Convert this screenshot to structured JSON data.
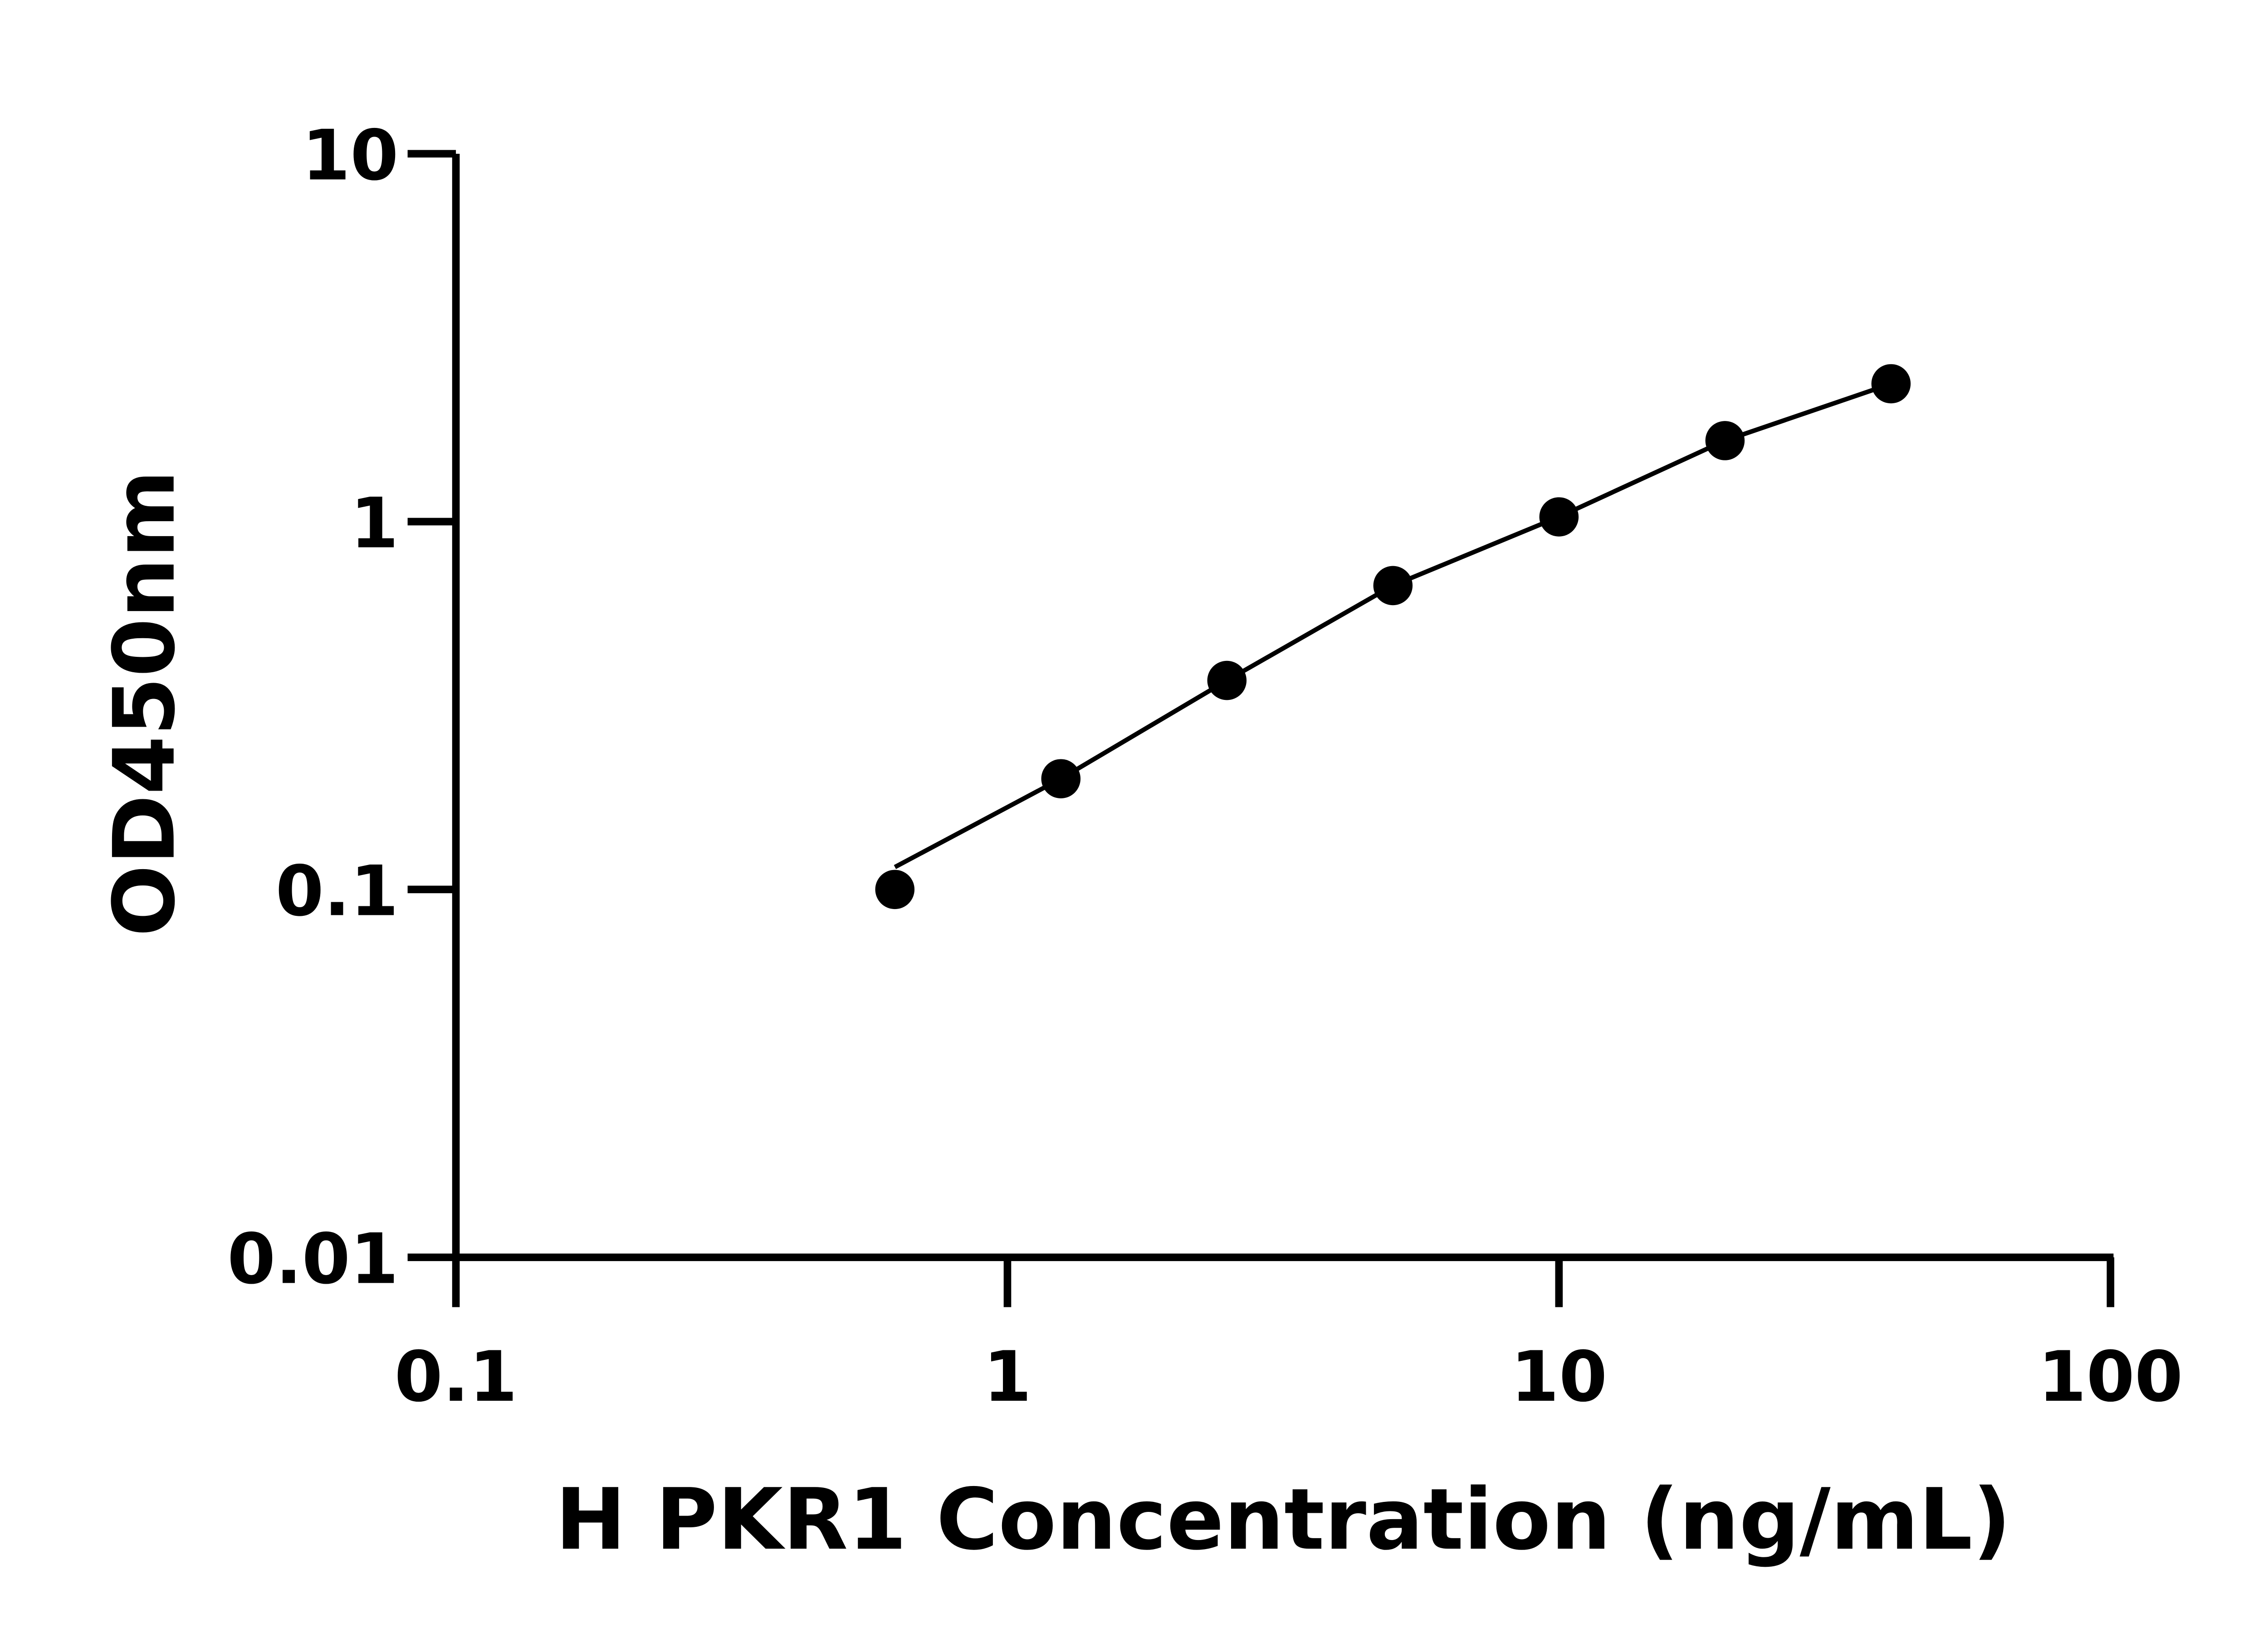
{
  "chart_data": {
    "type": "scatter",
    "title": "",
    "xlabel": "H PKR1 Concentration (ng/mL)",
    "ylabel": "OD450nm",
    "x_scale": "log",
    "y_scale": "log",
    "xlim": [
      0.1,
      100
    ],
    "ylim": [
      0.01,
      10
    ],
    "x_ticks": [
      "0.1",
      "1",
      "10",
      "100"
    ],
    "y_ticks": [
      "0.01",
      "0.1",
      "1",
      "10"
    ],
    "grid": false,
    "marker_color": "#000000",
    "line_color": "#000000",
    "series": [
      {
        "x": [
          0.625,
          1.25,
          2.5,
          5,
          10,
          20,
          40
        ],
        "y": [
          0.1,
          0.2,
          0.37,
          0.67,
          1.03,
          1.66,
          2.37
        ],
        "fit_line": true
      }
    ]
  }
}
